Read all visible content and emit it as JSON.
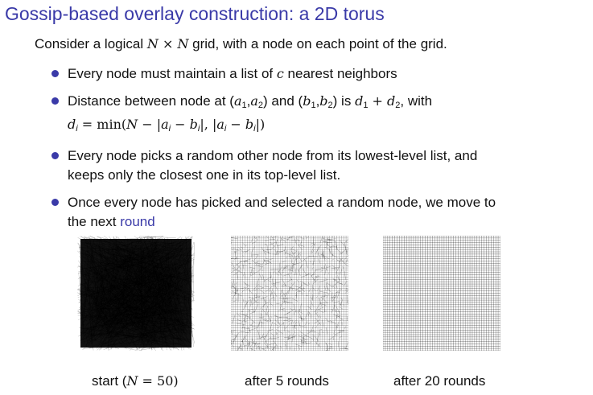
{
  "title": "Gossip-based overlay construction: a 2D torus",
  "intro": {
    "before": "Consider a logical ",
    "n1": "N",
    "times": " × ",
    "n2": "N",
    "after": " grid, with a node on each point of the grid."
  },
  "bullets": {
    "b1": {
      "before": "Every node must maintain a list of ",
      "var": "c",
      "after": " nearest neighbors"
    },
    "b2": {
      "text1": "Distance between node at (",
      "a": "a",
      "s1": "1",
      "comma1": ",",
      "a2": "a",
      "s2": "2",
      "text2": ") and (",
      "b": "b",
      "s3": "1",
      "comma2": ",",
      "b2": "b",
      "s4": "2",
      "text3": ") is ",
      "d1": "d",
      "s5": "1",
      "plus": " + ",
      "d2": "d",
      "s6": "2",
      "text4": ", with",
      "line2_d": "d",
      "line2_i": "i",
      "line2_eq": " = min(",
      "line2_N": "N",
      "line2_minus": " − |",
      "line2_a": "a",
      "line2_ai": "i",
      "line2_m2": " − ",
      "line2_b": "b",
      "line2_bi": "i",
      "line2_mid": "|, |",
      "line2_a2": "a",
      "line2_ai2": "i",
      "line2_m3": " − ",
      "line2_b2": "b",
      "line2_bi2": "i",
      "line2_end": "|)"
    },
    "b3": {
      "line1": "Every node picks a random other node from its lowest-level list, and",
      "line2": "keeps only the closest one in its top-level list."
    },
    "b4": {
      "line1": "Once every node has picked and selected a random node, we move to",
      "line2_before": "the next ",
      "link": "round"
    }
  },
  "figures": {
    "grid_n": 50,
    "fig1": {
      "caption_before": "start (",
      "caption_var": "N",
      "caption_eq": " = 50)",
      "rounds": 0,
      "density": 0.85
    },
    "fig2": {
      "caption": "after 5 rounds",
      "rounds": 5,
      "density": 0.35
    },
    "fig3": {
      "caption": "after 20 rounds",
      "rounds": 20,
      "density": 0.0
    }
  },
  "colors": {
    "accent": "#3a3aa8",
    "text": "#111111",
    "lines": "#000000"
  }
}
